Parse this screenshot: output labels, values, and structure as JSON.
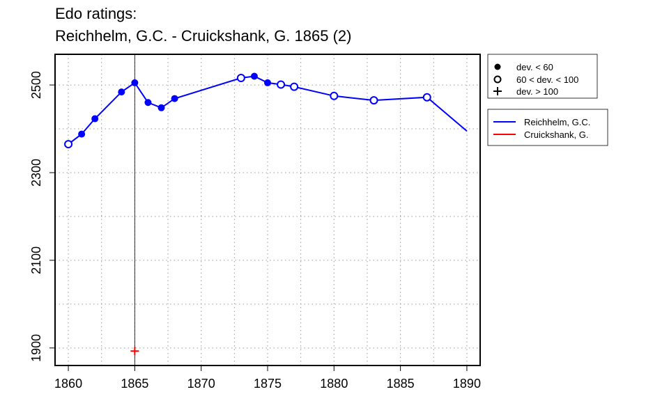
{
  "chart_data": {
    "type": "line",
    "title_line1": "Edo ratings:",
    "title_line2": "Reichhelm, G.C. - Cruickshank, G. 1865 (2)",
    "xlabel": "",
    "ylabel": "",
    "xlim": [
      1859,
      1891
    ],
    "ylim": [
      1860,
      2570
    ],
    "x_ticks": [
      1860,
      1865,
      1870,
      1875,
      1880,
      1885,
      1890
    ],
    "y_ticks": [
      1900,
      2100,
      2300,
      2500
    ],
    "grid": true,
    "marker_line_x": 1865,
    "legend_markers": [
      {
        "symbol": "filled",
        "label": "dev. < 60"
      },
      {
        "symbol": "open",
        "label": "60 < dev. < 100"
      },
      {
        "symbol": "plus",
        "label": "dev. > 100"
      }
    ],
    "legend_series": [
      {
        "label": "Reichhelm, G.C.",
        "color": "#0000ff"
      },
      {
        "label": "Cruickshank, G.",
        "color": "#ff0000"
      }
    ],
    "series": [
      {
        "name": "Reichhelm, G.C.",
        "color": "#0000ff",
        "points": [
          {
            "x": 1860,
            "y": 2365,
            "marker": "open"
          },
          {
            "x": 1861,
            "y": 2388,
            "marker": "filled"
          },
          {
            "x": 1862,
            "y": 2423,
            "marker": "filled"
          },
          {
            "x": 1864,
            "y": 2484,
            "marker": "filled"
          },
          {
            "x": 1865,
            "y": 2505,
            "marker": "filled"
          },
          {
            "x": 1866,
            "y": 2460,
            "marker": "filled"
          },
          {
            "x": 1867,
            "y": 2448,
            "marker": "filled"
          },
          {
            "x": 1868,
            "y": 2469,
            "marker": "filled"
          },
          {
            "x": 1873,
            "y": 2516,
            "marker": "open"
          },
          {
            "x": 1874,
            "y": 2520,
            "marker": "filled"
          },
          {
            "x": 1875,
            "y": 2505,
            "marker": "filled"
          },
          {
            "x": 1876,
            "y": 2501,
            "marker": "open"
          },
          {
            "x": 1877,
            "y": 2496,
            "marker": "open"
          },
          {
            "x": 1880,
            "y": 2475,
            "marker": "open"
          },
          {
            "x": 1883,
            "y": 2465,
            "marker": "open"
          },
          {
            "x": 1887,
            "y": 2472,
            "marker": "open"
          },
          {
            "x": 1890,
            "y": 2395,
            "marker": "none"
          }
        ]
      },
      {
        "name": "Cruickshank, G.",
        "color": "#ff0000",
        "points": [
          {
            "x": 1865,
            "y": 1893,
            "marker": "plus"
          }
        ]
      }
    ]
  }
}
